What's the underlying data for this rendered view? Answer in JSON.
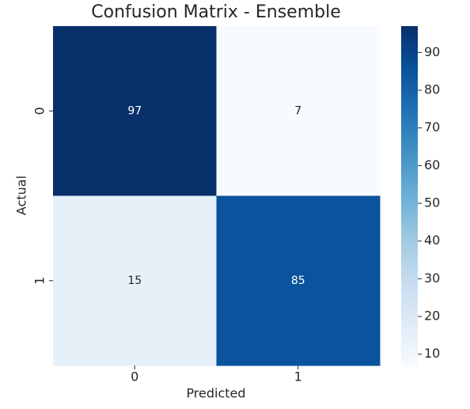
{
  "chart_data": {
    "type": "heatmap",
    "title": "Confusion Matrix - Ensemble",
    "xlabel": "Predicted",
    "ylabel": "Actual",
    "x_categories": [
      "0",
      "1"
    ],
    "y_categories": [
      "0",
      "1"
    ],
    "values": [
      [
        97,
        7
      ],
      [
        15,
        85
      ]
    ],
    "colormap": "Blues",
    "clim": [
      7,
      97
    ],
    "cticks": [
      10,
      20,
      30,
      40,
      50,
      60,
      70,
      80,
      90
    ]
  }
}
